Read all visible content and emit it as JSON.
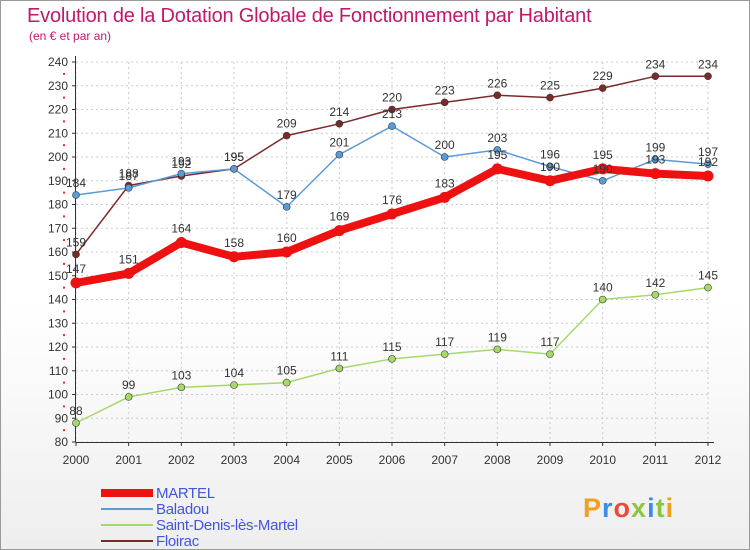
{
  "title": "Evolution de la Dotation Globale de Fonctionnement par Habitant",
  "subtitle": "(en € et par an)",
  "logo": {
    "text": "Proxiti",
    "colors": [
      "#f0a020",
      "#3a8ee6",
      "#e84c3d",
      "#8cc63f",
      "#3a8ee6",
      "#8cc63f",
      "#f0a020"
    ]
  },
  "colors": {
    "title": "#c2186b",
    "axis": "#333333",
    "grid": "#cccccc"
  },
  "chart_data": {
    "type": "line",
    "x": [
      "2000",
      "2001",
      "2002",
      "2003",
      "2004",
      "2005",
      "2006",
      "2007",
      "2008",
      "2009",
      "2010",
      "2011",
      "2012"
    ],
    "ylim": [
      80,
      240
    ],
    "yticks": [
      80,
      90,
      100,
      110,
      120,
      130,
      140,
      150,
      160,
      170,
      180,
      190,
      200,
      210,
      220,
      230,
      240
    ],
    "grid": true,
    "legend_position": "bottom-left",
    "series": [
      {
        "name": "MARTEL",
        "color": "#ee1111",
        "values": [
          147,
          151,
          164,
          158,
          160,
          169,
          176,
          183,
          195,
          190,
          195,
          193,
          192
        ],
        "labels": [
          "147",
          "151",
          "164",
          "158",
          "160",
          "169",
          "176",
          "183",
          "195",
          "190",
          "195",
          "193",
          "192"
        ]
      },
      {
        "name": "Baladou",
        "color": "#5b9bd5",
        "values": [
          184,
          187,
          193,
          195,
          179,
          201,
          213,
          200,
          203,
          196,
          190,
          199,
          197
        ],
        "labels": [
          "184",
          "187",
          "193",
          "195",
          "179",
          "201",
          "213",
          "200",
          "203",
          "196",
          "190",
          "199",
          "197"
        ]
      },
      {
        "name": "Saint-Denis-lès-Martel",
        "color": "#a6d96a",
        "values": [
          88,
          99,
          103,
          104,
          105,
          111,
          115,
          117,
          119,
          117,
          140,
          142,
          145
        ],
        "labels": [
          "88",
          "99",
          "103",
          "104",
          "105",
          "111",
          "115",
          "117",
          "119",
          "117",
          "140",
          "142",
          "145"
        ]
      },
      {
        "name": "Floirac",
        "color": "#7b2a2a",
        "values": [
          159,
          188,
          192,
          195,
          209,
          214,
          220,
          223,
          226,
          225,
          229,
          234,
          234
        ],
        "labels": [
          "159",
          "188",
          "192",
          "195",
          "209",
          "214",
          "220",
          "223",
          "226",
          "225",
          "229",
          "234",
          "234"
        ]
      }
    ]
  }
}
